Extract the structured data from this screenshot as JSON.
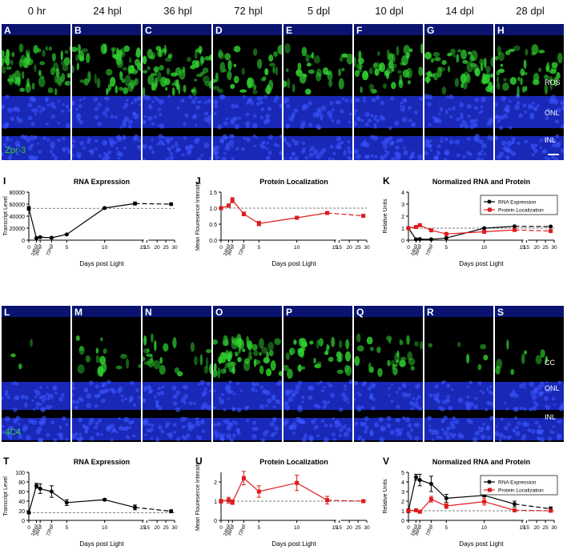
{
  "top_headers": [
    "0 hr",
    "24 hpl",
    "36 hpl",
    "72 hpl",
    "5 dpl",
    "10 dpl",
    "14 dpl",
    "28 dpl"
  ],
  "top_letters": [
    "A",
    "B",
    "C",
    "D",
    "E",
    "F",
    "G",
    "H"
  ],
  "bottom_letters": [
    "L",
    "M",
    "N",
    "O",
    "P",
    "Q",
    "R",
    "S"
  ],
  "top_stain": "Zpr-3",
  "bottom_stain": "4C4",
  "top_layers": [
    "ROS",
    "ONL",
    "INL"
  ],
  "bottom_layers": [
    "CC",
    "ONL",
    "INL"
  ],
  "colors": {
    "nuclei": "#1d2fd6",
    "stain": "#2fd12f",
    "rna": "#000000",
    "protein": "#e01b1b"
  },
  "chart_letters": [
    "I",
    "J",
    "K",
    "T",
    "U",
    "V"
  ],
  "chart_data": [
    {
      "type": "line",
      "id": "I",
      "title": "RNA Expression",
      "ylabel": "Transcript Level",
      "xlabel": "Days post Light",
      "x_tick_labels": [
        "0",
        "24hpl",
        "36hpl",
        "72hpl",
        "5",
        "10",
        "15",
        "15",
        "20",
        "25",
        "30"
      ],
      "yticks": [
        0,
        20000,
        40000,
        60000,
        80000
      ],
      "ylim": [
        0,
        80000
      ],
      "baseline": 53000,
      "series": [
        {
          "name": "RNA Expression",
          "color": "#000000",
          "x": [
            0,
            1,
            1.5,
            3,
            5,
            10,
            14,
            28
          ],
          "y": [
            53000,
            3500,
            5000,
            4000,
            9500,
            53500,
            61000,
            60000
          ],
          "err": [
            3000,
            800,
            800,
            600,
            800,
            1000,
            2500,
            2000
          ]
        }
      ]
    },
    {
      "type": "line",
      "id": "J",
      "title": "Protein Localization",
      "ylabel": "Mean Flouresence Intensity",
      "xlabel": "Days post Light",
      "x_tick_labels": [
        "0",
        "24hpl",
        "36hpl",
        "72hpl",
        "5",
        "10",
        "15",
        "15",
        "20",
        "25",
        "30"
      ],
      "yticks": [
        0.0,
        0.5,
        1.0,
        1.5
      ],
      "ylim": [
        0,
        1.5
      ],
      "baseline": 1.0,
      "series": [
        {
          "name": "Protein Localization",
          "color": "#e01b1b",
          "x": [
            0,
            1,
            1.5,
            3,
            5,
            10,
            14,
            28
          ],
          "y": [
            1.0,
            1.08,
            1.25,
            0.82,
            0.52,
            0.7,
            0.85,
            0.76
          ],
          "err": [
            0.04,
            0.05,
            0.08,
            0.06,
            0.07,
            0.04,
            0.03,
            0.03
          ]
        }
      ]
    },
    {
      "type": "line",
      "id": "K",
      "title": "Normalized RNA and Protein",
      "ylabel": "Relative Units",
      "xlabel": "Days post Light",
      "x_tick_labels": [
        "0",
        "24hpl",
        "36hpl",
        "72hpl",
        "5",
        "10",
        "15",
        "15",
        "20",
        "25",
        "30"
      ],
      "yticks": [
        0,
        1,
        2,
        3,
        4
      ],
      "ylim": [
        0,
        4
      ],
      "baseline": 1.0,
      "legend": "top-right",
      "series": [
        {
          "name": "RNA Expression",
          "color": "#000000",
          "x": [
            0,
            1,
            1.5,
            3,
            5,
            10,
            14,
            28
          ],
          "y": [
            1.0,
            0.07,
            0.09,
            0.07,
            0.18,
            1.0,
            1.15,
            1.13
          ],
          "err": [
            0,
            0,
            0,
            0,
            0,
            0,
            0,
            0
          ]
        },
        {
          "name": "Protein Localization",
          "color": "#e01b1b",
          "x": [
            0,
            1,
            1.5,
            3,
            5,
            10,
            14,
            28
          ],
          "y": [
            1.0,
            1.1,
            1.25,
            0.82,
            0.52,
            0.7,
            0.85,
            0.76
          ],
          "err": [
            0.03,
            0.04,
            0.05,
            0.04,
            0.05,
            0.04,
            0.03,
            0.03
          ]
        }
      ]
    },
    {
      "type": "line",
      "id": "T",
      "title": "RNA Expression",
      "ylabel": "Transcript Level",
      "xlabel": "Days post Light",
      "x_tick_labels": [
        "0",
        "24hpl",
        "36hpl",
        "72hpl",
        "5",
        "10",
        "15",
        "15",
        "20",
        "25",
        "30"
      ],
      "yticks": [
        0,
        20,
        40,
        60,
        80,
        100
      ],
      "ylim": [
        0,
        100
      ],
      "baseline": 16,
      "series": [
        {
          "name": "RNA Expression",
          "color": "#000000",
          "x": [
            0,
            1,
            1.5,
            3,
            5,
            10,
            14,
            28
          ],
          "y": [
            16,
            72,
            66,
            60,
            37,
            43,
            27,
            19
          ],
          "err": [
            2,
            5,
            10,
            12,
            6,
            2,
            5,
            3
          ]
        }
      ]
    },
    {
      "type": "line",
      "id": "U",
      "title": "Protein Localization",
      "ylabel": "Mean Flouresence Intensity",
      "xlabel": "Days post Light",
      "x_tick_labels": [
        "0",
        "24hpl",
        "36hpl",
        "72hpl",
        "5",
        "10",
        "15",
        "15",
        "20",
        "25",
        "30"
      ],
      "yticks": [
        0,
        1,
        2
      ],
      "ylim": [
        0,
        2.5
      ],
      "baseline": 1.0,
      "series": [
        {
          "name": "Protein Localization",
          "color": "#e01b1b",
          "x": [
            0,
            1,
            1.5,
            3,
            5,
            10,
            14,
            28
          ],
          "y": [
            1.0,
            1.05,
            0.95,
            2.2,
            1.5,
            1.95,
            1.05,
            1.0
          ],
          "err": [
            0.1,
            0.15,
            0.12,
            0.35,
            0.3,
            0.4,
            0.2,
            0.08
          ]
        }
      ]
    },
    {
      "type": "line",
      "id": "V",
      "title": "Normalized RNA and Protein",
      "ylabel": "Relative Units",
      "xlabel": "Days post Light",
      "x_tick_labels": [
        "0",
        "24hpl",
        "36hpl",
        "72hpl",
        "5",
        "10",
        "15",
        "15",
        "20",
        "25",
        "30"
      ],
      "yticks": [
        0,
        1,
        2,
        3,
        4,
        5
      ],
      "ylim": [
        0,
        5
      ],
      "baseline": 1.0,
      "legend": "top-right",
      "series": [
        {
          "name": "RNA Expression",
          "color": "#000000",
          "x": [
            0,
            1,
            1.5,
            3,
            5,
            10,
            14,
            28
          ],
          "y": [
            1.0,
            4.5,
            4.2,
            3.8,
            2.3,
            2.6,
            1.7,
            1.2
          ],
          "err": [
            0.2,
            0.3,
            0.6,
            0.8,
            0.4,
            0.15,
            0.3,
            0.2
          ]
        },
        {
          "name": "Protein Localization",
          "color": "#e01b1b",
          "x": [
            0,
            1,
            1.5,
            3,
            5,
            10,
            14,
            28
          ],
          "y": [
            1.0,
            1.05,
            0.9,
            2.2,
            1.5,
            1.95,
            1.05,
            1.0
          ],
          "err": [
            0.1,
            0.1,
            0.1,
            0.3,
            0.25,
            0.35,
            0.15,
            0.08
          ]
        }
      ]
    }
  ]
}
